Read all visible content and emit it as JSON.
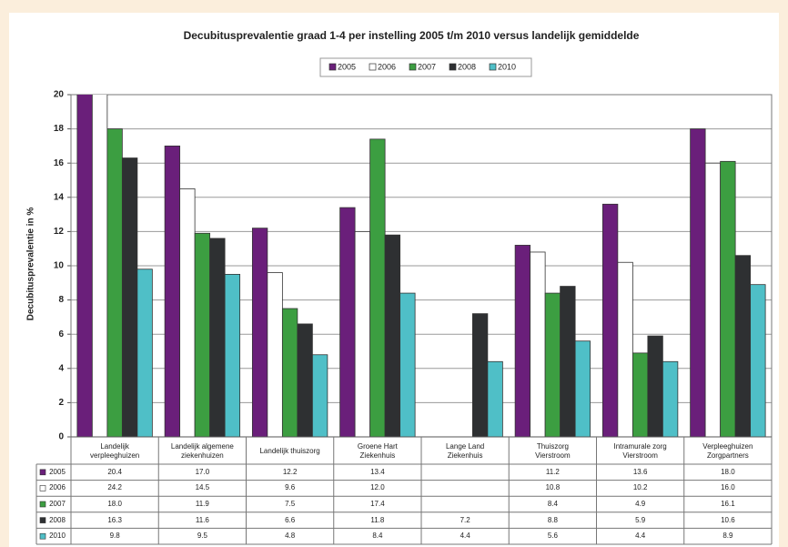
{
  "chart_data": {
    "type": "bar",
    "title": "Decubitusprevalentie graad 1-4 per instelling 2005 t/m 2010 versus landelijk gemiddelde",
    "y_label": "Decubitusprevalentie in %",
    "categories": [
      "Landelijk\nverpleeghuizen",
      "Landelijk algemene\nziekenhuizen",
      "Landelijk thuiszorg",
      "Groene Hart\nZiekenhuis",
      "Lange Land\nZiekenhuis",
      "Thuiszorg\nVierstroom",
      "Intramurale zorg\nVierstroom",
      "Verpleeghuizen\nZorgpartners"
    ],
    "series": [
      {
        "name": "2005",
        "color": "#6a1f7a",
        "values": [
          20.4,
          17.0,
          12.2,
          13.4,
          null,
          11.2,
          13.6,
          18.0
        ],
        "value_labels": [
          "20.4",
          "17.0",
          "12.2",
          "13.4",
          null,
          "11.2",
          "13.6",
          "18.0"
        ]
      },
      {
        "name": "2006",
        "color": "#ffffff",
        "values": [
          24.2,
          14.5,
          9.6,
          12.0,
          null,
          10.8,
          10.2,
          16.0
        ],
        "value_labels": [
          "24.2",
          "14.5",
          "9.6",
          "12.0",
          null,
          "10.8",
          "10.2",
          "16.0"
        ]
      },
      {
        "name": "2007",
        "color": "#3c9e41",
        "values": [
          18.0,
          11.9,
          7.5,
          17.4,
          null,
          8.4,
          4.9,
          16.1
        ],
        "value_labels": [
          "18.0",
          "11.9",
          "7.5",
          "17.4",
          null,
          "8.4",
          "4.9",
          "16.1"
        ]
      },
      {
        "name": "2008",
        "color": "#2e3032",
        "values": [
          16.3,
          11.6,
          6.6,
          11.8,
          7.2,
          8.8,
          5.9,
          10.6
        ],
        "value_labels": [
          "16.3",
          "11.6",
          "6.6",
          "11.8",
          "7.2",
          "8.8",
          "5.9",
          "10.6"
        ]
      },
      {
        "name": "2010",
        "color": "#4fbfc7",
        "values": [
          9.8,
          9.5,
          4.8,
          8.4,
          4.4,
          5.6,
          4.4,
          8.9
        ],
        "value_labels": [
          "9.8",
          "9.5",
          "4.8",
          "8.4",
          "4.4",
          "5.6",
          "4.4",
          "8.9"
        ]
      }
    ],
    "ylim": [
      0,
      20
    ],
    "yticks": [
      0,
      2,
      4,
      6,
      8,
      10,
      12,
      14,
      16,
      18,
      20
    ],
    "grid": true
  }
}
